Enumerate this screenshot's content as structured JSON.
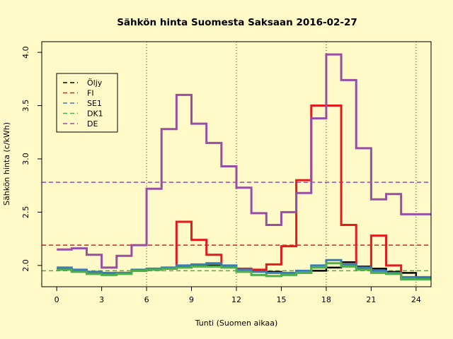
{
  "chart_data": {
    "type": "line",
    "title": "Sähkön hinta Suomesta Saksaan 2016-02-27",
    "xlabel": "Tunti (Suomen aikaa)",
    "ylabel": "Sähkön hinta (c/kWh)",
    "xlim": [
      -1,
      25
    ],
    "ylim": [
      1.8,
      4.1
    ],
    "xticks": [
      0,
      3,
      6,
      9,
      12,
      15,
      18,
      21,
      24
    ],
    "yticks": [
      2.0,
      2.5,
      3.0,
      3.5,
      4.0
    ],
    "vertical_gridlines_at": [
      6,
      12,
      18,
      24
    ],
    "step_style": "hourly step, value h spans h-1 to h",
    "legend": {
      "position": "top-left",
      "entries": [
        "Öljy",
        "FI",
        "SE1",
        "DK1",
        "DE"
      ]
    },
    "x": [
      1,
      2,
      3,
      4,
      5,
      6,
      7,
      8,
      9,
      10,
      11,
      12,
      13,
      14,
      15,
      16,
      17,
      18,
      19,
      20,
      21,
      22,
      23,
      24,
      25
    ],
    "series": [
      {
        "name": "Öljy",
        "color": "#000000",
        "values": [
          1.97,
          1.95,
          1.93,
          1.92,
          1.93,
          1.95,
          1.96,
          1.97,
          1.99,
          2.0,
          2.0,
          1.99,
          1.97,
          1.95,
          1.94,
          1.93,
          1.93,
          1.95,
          1.98,
          2.03,
          1.99,
          1.97,
          1.94,
          1.93,
          1.88
        ]
      },
      {
        "name": "FI",
        "color": "#E41A1C",
        "values": [
          1.97,
          1.95,
          1.93,
          1.92,
          1.93,
          1.95,
          1.96,
          1.97,
          2.41,
          2.24,
          2.1,
          1.99,
          1.97,
          1.96,
          2.01,
          2.18,
          2.8,
          3.5,
          3.5,
          2.38,
          1.98,
          2.28,
          2.0,
          1.87,
          1.87
        ]
      },
      {
        "name": "SE1",
        "color": "#377EB8",
        "values": [
          1.98,
          1.96,
          1.94,
          1.93,
          1.93,
          1.96,
          1.97,
          1.98,
          2.0,
          2.01,
          2.02,
          2.0,
          1.96,
          1.94,
          1.93,
          1.93,
          1.95,
          2.0,
          2.05,
          2.01,
          1.98,
          1.95,
          1.93,
          1.89,
          1.89
        ]
      },
      {
        "name": "DK1",
        "color": "#4DAF4A",
        "values": [
          1.96,
          1.94,
          1.92,
          1.91,
          1.92,
          1.95,
          1.96,
          1.97,
          1.98,
          1.99,
          1.99,
          1.98,
          1.94,
          1.91,
          1.9,
          1.91,
          1.93,
          1.98,
          2.02,
          1.99,
          1.96,
          1.93,
          1.92,
          1.87,
          1.87
        ]
      },
      {
        "name": "DE",
        "color": "#984EA3",
        "values": [
          2.15,
          2.16,
          2.1,
          1.98,
          2.09,
          2.19,
          2.72,
          3.28,
          3.6,
          3.33,
          3.15,
          2.93,
          2.73,
          2.49,
          2.38,
          2.5,
          2.68,
          3.38,
          3.98,
          3.74,
          3.1,
          2.62,
          2.67,
          2.48,
          2.48
        ]
      }
    ],
    "averages": [
      {
        "name": "FI",
        "color": "#E41A1C",
        "value": 2.19
      },
      {
        "name": "DE",
        "color": "#984EA3",
        "value": 2.78
      },
      {
        "name": "DK1",
        "color": "#4DAF4A",
        "value": 1.95
      }
    ]
  }
}
